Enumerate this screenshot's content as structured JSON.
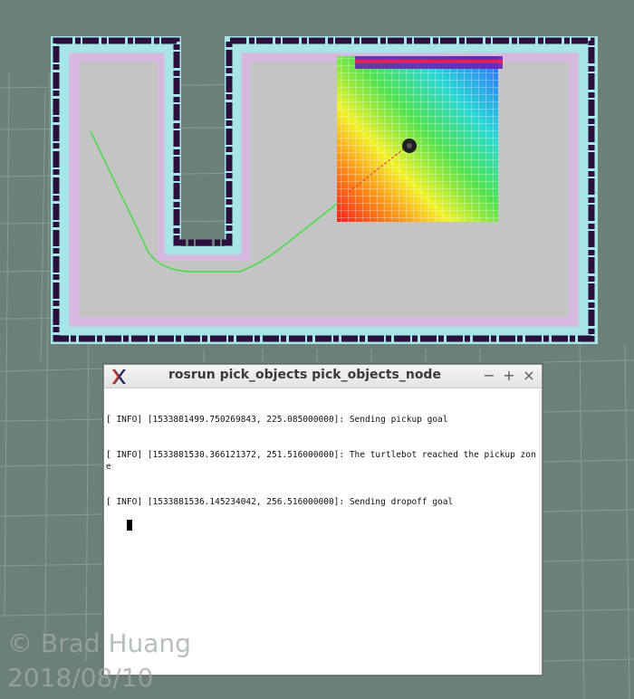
{
  "terminal": {
    "title": "rosrun pick_objects pick_objects_node",
    "icon": "x-terminal-icon",
    "controls": {
      "minimize": "−",
      "maximize": "+",
      "close": "×"
    },
    "lines": [
      "[ INFO] [1533881499.750269843, 225.085000000]: Sending pickup goal",
      "[ INFO] [1533881530.366121372, 251.516000000]: The turtlebot reached the pickup zone",
      "[ INFO] [1533881536.145234042, 256.516000000]: Sending dropoff goal"
    ]
  },
  "watermark": {
    "author": "© Brad Huang",
    "date": "2018/08/10"
  },
  "colors": {
    "background": "#6a8079",
    "map_free": "#c4c4c4",
    "map_wall": "#2b0f3c",
    "inflation": "#a6e6e6",
    "path": "#44dd44",
    "robot": "#202020"
  },
  "icons": [
    "x-terminal-icon",
    "robot-icon"
  ]
}
